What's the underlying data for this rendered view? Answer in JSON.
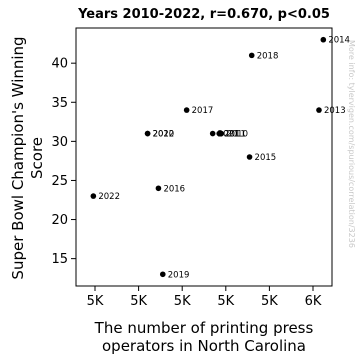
{
  "chart_data": {
    "type": "scatter",
    "title": "Years 2010-2022, r=0.670, p<0.05",
    "xlabel": [
      "The number of printing press",
      "operators in North Carolina"
    ],
    "ylabel": [
      "Super Bowl Champion's Winning",
      "Score"
    ],
    "watermark": "More info: tylervigen.com/spurious/correlation/3236",
    "x_ticks": [
      "5K",
      "5K",
      "5K",
      "5K",
      "5K",
      "6K"
    ],
    "y_ticks": [
      "15",
      "20",
      "25",
      "30",
      "35",
      "40"
    ],
    "xlim": [
      4740,
      5920
    ],
    "ylim": [
      11.5,
      44.5
    ],
    "grid": false,
    "marker_color": "#000000",
    "points": [
      {
        "label": "2010",
        "x": 5410,
        "y": 31
      },
      {
        "label": "2011",
        "x": 5400,
        "y": 31
      },
      {
        "label": "2012",
        "x": 5070,
        "y": 31
      },
      {
        "label": "2013",
        "x": 5860,
        "y": 34
      },
      {
        "label": "2014",
        "x": 5880,
        "y": 43
      },
      {
        "label": "2015",
        "x": 5540,
        "y": 28
      },
      {
        "label": "2016",
        "x": 5120,
        "y": 24
      },
      {
        "label": "2017",
        "x": 5250,
        "y": 34
      },
      {
        "label": "2018",
        "x": 5550,
        "y": 41
      },
      {
        "label": "2019",
        "x": 5140,
        "y": 13
      },
      {
        "label": "2020",
        "x": 5070,
        "y": 31
      },
      {
        "label": "2021",
        "x": 5370,
        "y": 31
      },
      {
        "label": "2022",
        "x": 4820,
        "y": 23
      }
    ]
  }
}
